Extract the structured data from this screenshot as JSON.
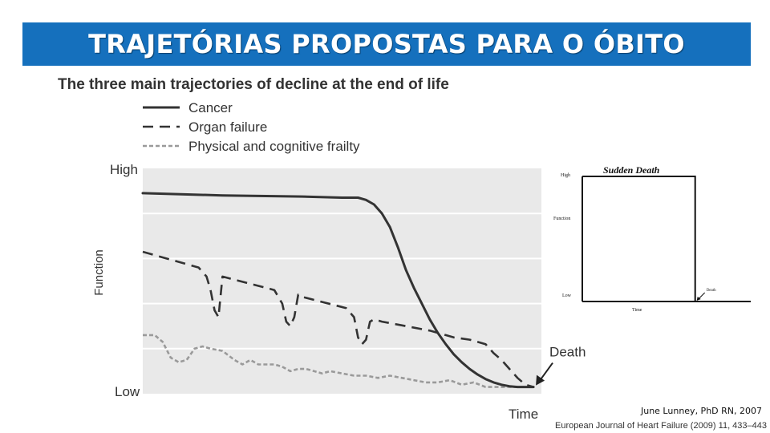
{
  "slide": {
    "title": "TRAJETÓRIAS PROPOSTAS PARA O ÓBITO",
    "credit": "June Lunney, PhD RN, 2007",
    "citation": "European Journal of Heart Failure (2009) 11, 433–443"
  },
  "chart_data": [
    {
      "type": "line",
      "title": "The three main trajectories of decline at the end of life",
      "xlabel": "Time",
      "ylabel": "Function",
      "y_tick_labels": [
        "High",
        "Low"
      ],
      "x_range": [
        0,
        100
      ],
      "y_range": [
        0,
        100
      ],
      "grid": true,
      "legend_position": "top-left",
      "annotations": [
        {
          "text": "Death",
          "x": 98,
          "y": 3
        }
      ],
      "series": [
        {
          "name": "Cancer",
          "style": "solid",
          "color": "#333333",
          "x": [
            0,
            20,
            40,
            50,
            54,
            56,
            58,
            60,
            62,
            64,
            66,
            68,
            70,
            72,
            74,
            76,
            78,
            80,
            82,
            84,
            86,
            88,
            90,
            92,
            94,
            96,
            98
          ],
          "y": [
            89,
            88,
            87.5,
            87,
            87,
            86,
            84,
            80,
            74,
            65,
            55,
            47,
            40,
            33,
            27,
            22,
            17.5,
            14,
            11,
            8.5,
            6.5,
            5,
            4,
            3.3,
            3,
            3,
            3
          ]
        },
        {
          "name": "Organ failure",
          "style": "dashed",
          "color": "#333333",
          "x": [
            0,
            14,
            16,
            17,
            18,
            19,
            20,
            33,
            35,
            36,
            37,
            38,
            39,
            40,
            51,
            53,
            54,
            55,
            56,
            57,
            58,
            60,
            72,
            74,
            76,
            78,
            80,
            82,
            84,
            86,
            88,
            90,
            92,
            94,
            96,
            98
          ],
          "y": [
            63,
            56,
            52,
            46,
            37,
            34,
            52,
            46,
            40,
            32,
            30,
            34,
            44,
            43,
            38,
            34,
            25,
            22,
            24,
            32,
            33,
            32,
            28,
            27,
            26,
            25,
            24.5,
            24,
            23,
            22,
            18,
            15,
            11,
            7,
            4,
            3
          ]
        },
        {
          "name": "Physical and cognitive frailty",
          "style": "dotted",
          "color": "#9a9a9a",
          "x": [
            0,
            3,
            5,
            7,
            9,
            11,
            13,
            15,
            17,
            20,
            23,
            25,
            27,
            29,
            31,
            33,
            35,
            37,
            39,
            41,
            43,
            45,
            47,
            50,
            53,
            56,
            59,
            62,
            65,
            68,
            71,
            74,
            77,
            80,
            83,
            86,
            89,
            92,
            95,
            98
          ],
          "y": [
            26,
            26,
            23,
            16,
            14,
            15,
            20,
            21,
            20,
            19,
            15,
            13,
            15,
            13,
            13,
            13,
            12,
            10,
            11,
            11,
            10,
            9,
            10,
            9,
            8,
            8,
            7,
            8,
            7,
            6,
            5,
            5,
            6,
            4,
            5,
            3,
            3,
            3,
            3,
            3
          ]
        }
      ]
    },
    {
      "type": "line",
      "title": "Sudden Death",
      "xlabel": "Time",
      "ylabel": "Function",
      "y_tick_labels": [
        "High",
        "Low"
      ],
      "x_range": [
        0,
        100
      ],
      "y_range": [
        0,
        100
      ],
      "grid": false,
      "annotations": [
        {
          "text": "Death",
          "x": 67,
          "y": 0
        }
      ],
      "series": [
        {
          "style": "solid",
          "color": "#111111",
          "x": [
            0,
            67,
            67
          ],
          "y": [
            100,
            100,
            0
          ]
        }
      ]
    }
  ]
}
